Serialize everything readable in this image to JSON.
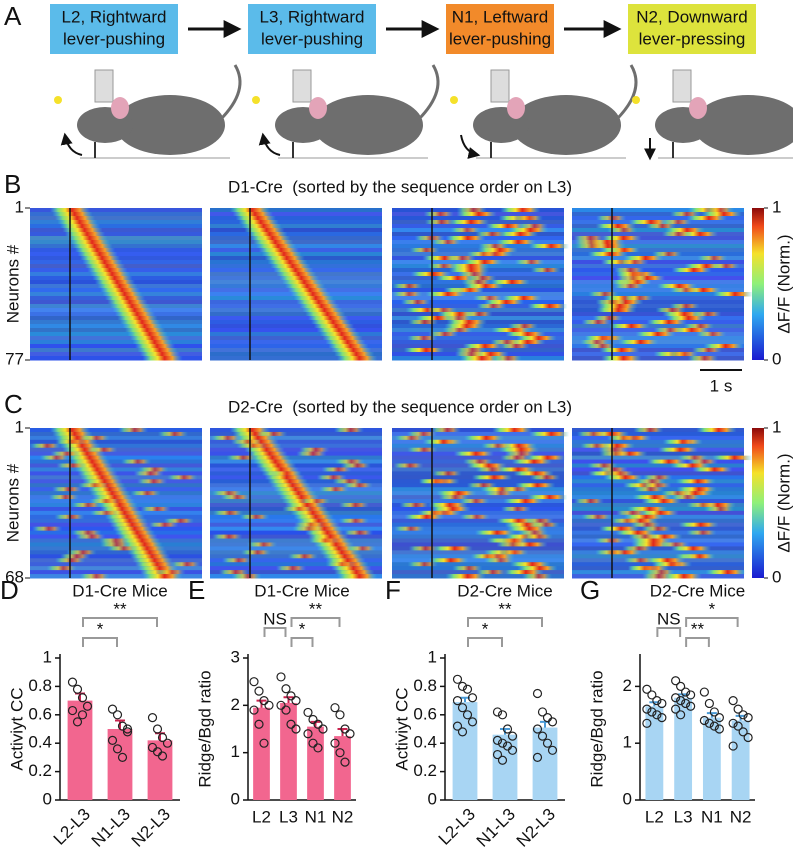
{
  "panel_labels": [
    "A",
    "B",
    "C",
    "D",
    "E",
    "F",
    "G"
  ],
  "panel_a": {
    "boxes": [
      {
        "lines": [
          "L2, Rightward",
          "lever-pushing"
        ],
        "color": "#5bbbea"
      },
      {
        "lines": [
          "L3, Rightward",
          "lever-pushing"
        ],
        "color": "#5bbbea"
      },
      {
        "lines": [
          "N1, Leftward",
          "lever-pushing"
        ],
        "color": "#f28a2a"
      },
      {
        "lines": [
          "N2, Downward",
          "lever-pressing"
        ],
        "color": "#dde33c"
      }
    ]
  },
  "heatmaps": [
    {
      "title": "D1-Cre  (sorted by the sequence order on L3)",
      "ylabel": "Neurons #",
      "ylim": [
        1,
        77
      ],
      "yticks": [
        1,
        77
      ]
    },
    {
      "title": "D2-Cre  (sorted by the sequence order on L3)",
      "ylabel": "Neurons #",
      "ylim": [
        1,
        68
      ],
      "yticks": [
        1,
        68
      ]
    }
  ],
  "colorbar": {
    "label": "ΔF/F (Norm.)",
    "ticks": [
      0,
      1
    ]
  },
  "scale_bar": "1 s",
  "chart_data": [
    {
      "type": "bar",
      "title": "D1-Cre Mice",
      "ylabel": "Activiyt CC",
      "color": "#f2668f",
      "categories": [
        "L2-L3",
        "N1-L3",
        "N2-L3"
      ],
      "values": [
        0.7,
        0.5,
        0.42
      ],
      "errors": [
        0.05,
        0.06,
        0.05
      ],
      "points": [
        [
          0.83,
          0.78,
          0.72,
          0.66,
          0.63,
          0.55,
          0.6
        ],
        [
          0.64,
          0.6,
          0.52,
          0.48,
          0.42,
          0.36,
          0.3,
          0.5
        ],
        [
          0.58,
          0.5,
          0.44,
          0.4,
          0.37,
          0.34,
          0.31
        ]
      ],
      "comparisons": [
        {
          "from": 0,
          "to": 1,
          "label": "*"
        },
        {
          "from": 0,
          "to": 2,
          "label": "**"
        }
      ],
      "ylim": [
        0,
        1
      ],
      "yticks": [
        0,
        0.2,
        0.4,
        0.6,
        0.8,
        1
      ]
    },
    {
      "type": "bar",
      "title": "D1-Cre Mice",
      "ylabel": "Ridge/Bgd ratio",
      "color": "#f2668f",
      "categories": [
        "L2",
        "L3",
        "N1",
        "N2"
      ],
      "values": [
        1.95,
        2.05,
        1.55,
        1.35
      ],
      "errors": [
        0.15,
        0.12,
        0.1,
        0.15
      ],
      "points": [
        [
          2.5,
          2.3,
          2.1,
          2.0,
          1.9,
          1.6,
          1.2
        ],
        [
          2.6,
          2.35,
          2.2,
          2.1,
          2.0,
          1.9,
          1.6,
          1.5
        ],
        [
          1.85,
          1.7,
          1.6,
          1.5,
          1.4,
          1.2,
          1.1
        ],
        [
          1.95,
          1.8,
          1.5,
          1.4,
          1.2,
          1.0,
          0.8
        ]
      ],
      "comparisons": [
        {
          "from": 0,
          "to": 1,
          "label": "NS"
        },
        {
          "from": 1,
          "to": 2,
          "label": "*"
        },
        {
          "from": 1,
          "to": 3,
          "label": "**"
        }
      ],
      "ylim": [
        0,
        3
      ],
      "yticks": [
        0,
        1,
        2,
        3
      ]
    },
    {
      "type": "bar",
      "title": "D2-Cre Mice",
      "ylabel": "Activiyt CC",
      "color": "#a8d5f3",
      "categories": [
        "L2-L3",
        "N1-L3",
        "N2-L3"
      ],
      "values": [
        0.69,
        0.46,
        0.51
      ],
      "errors": [
        0.03,
        0.04,
        0.04
      ],
      "points": [
        [
          0.85,
          0.8,
          0.78,
          0.72,
          0.7,
          0.65,
          0.6,
          0.55,
          0.52,
          0.48
        ],
        [
          0.62,
          0.6,
          0.5,
          0.45,
          0.42,
          0.4,
          0.38,
          0.35,
          0.32,
          0.28
        ],
        [
          0.75,
          0.62,
          0.58,
          0.55,
          0.5,
          0.45,
          0.4,
          0.35,
          0.3
        ]
      ],
      "comparisons": [
        {
          "from": 0,
          "to": 1,
          "label": "*"
        },
        {
          "from": 0,
          "to": 2,
          "label": "**"
        }
      ],
      "ylim": [
        0,
        1
      ],
      "yticks": [
        0,
        0.2,
        0.4,
        0.6,
        0.8,
        1
      ]
    },
    {
      "type": "bar",
      "title": "D2-Cre Mice",
      "ylabel": "Ridge/Bgd ratio",
      "color": "#a8d5f3",
      "categories": [
        "L2",
        "L3",
        "N1",
        "N2"
      ],
      "values": [
        1.65,
        1.8,
        1.45,
        1.4
      ],
      "errors": [
        0.07,
        0.06,
        0.08,
        0.08
      ],
      "points": [
        [
          1.95,
          1.85,
          1.75,
          1.7,
          1.6,
          1.55,
          1.5,
          1.45,
          1.35
        ],
        [
          2.1,
          2.0,
          1.9,
          1.85,
          1.8,
          1.75,
          1.7,
          1.65,
          1.6,
          1.5
        ],
        [
          1.9,
          1.7,
          1.55,
          1.45,
          1.4,
          1.35,
          1.3,
          1.25
        ],
        [
          1.75,
          1.6,
          1.5,
          1.45,
          1.35,
          1.3,
          1.2,
          1.1,
          0.95
        ]
      ],
      "comparisons": [
        {
          "from": 0,
          "to": 1,
          "label": "NS"
        },
        {
          "from": 1,
          "to": 2,
          "label": "**"
        },
        {
          "from": 1,
          "to": 3,
          "label": "*"
        }
      ],
      "ylim": [
        0,
        2.5
      ],
      "yticks": [
        0,
        1,
        2
      ]
    }
  ]
}
